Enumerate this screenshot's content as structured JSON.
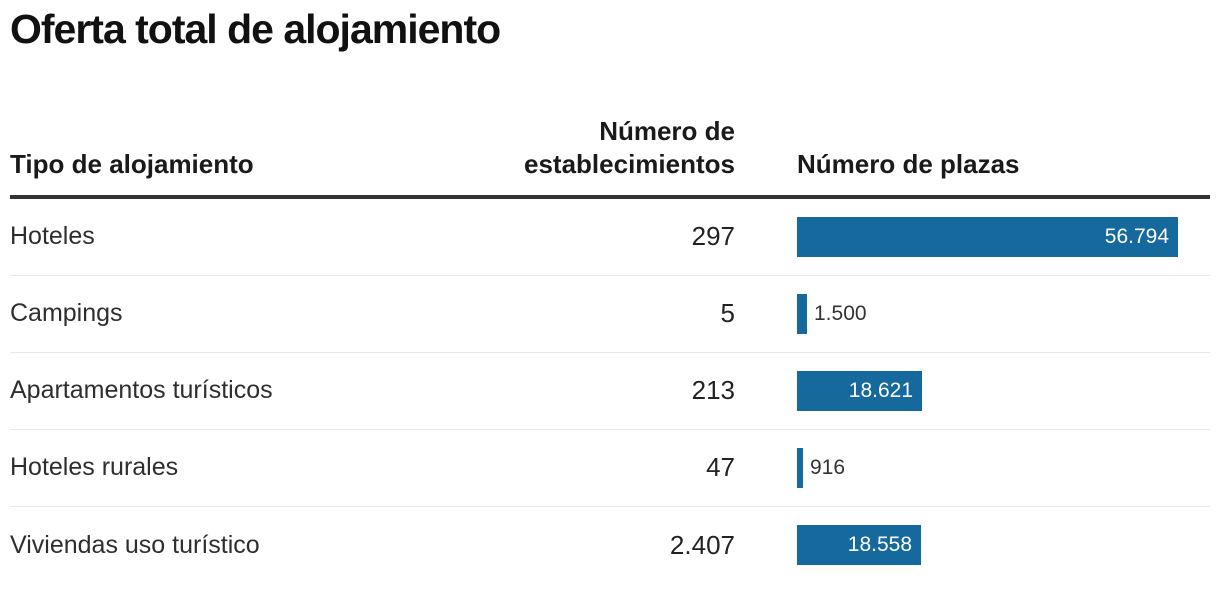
{
  "title": "Oferta total de alojamiento",
  "colors": {
    "bar": "#15699c",
    "bar_label_inside": "#ffffff",
    "bar_label_outside": "#333333",
    "header_rule": "#333333",
    "row_divider": "#e8e8e8",
    "title_text": "#111111",
    "body_text": "#2e2e2e"
  },
  "table": {
    "columns": [
      {
        "label": "Tipo de alojamiento"
      },
      {
        "label": "Número de establecimientos"
      },
      {
        "label": "Número de plazas"
      }
    ]
  },
  "chart_data": {
    "type": "table",
    "title": "Oferta total de alojamiento",
    "columns": [
      "Tipo de alojamiento",
      "Número de establecimientos",
      "Número de plazas"
    ],
    "bar_column": "Número de plazas",
    "bar_max": 56794,
    "rows": [
      {
        "tipo": "Hoteles",
        "establecimientos": "297",
        "plazas": 56794,
        "plazas_label": "56.794"
      },
      {
        "tipo": "Campings",
        "establecimientos": "5",
        "plazas": 1500,
        "plazas_label": "1.500"
      },
      {
        "tipo": "Apartamentos turísticos",
        "establecimientos": "213",
        "plazas": 18621,
        "plazas_label": "18.621"
      },
      {
        "tipo": "Hoteles rurales",
        "establecimientos": "47",
        "plazas": 916,
        "plazas_label": "916"
      },
      {
        "tipo": "Viviendas uso turístico",
        "establecimientos": "2.407",
        "plazas": 18558,
        "plazas_label": "18.558"
      }
    ]
  }
}
